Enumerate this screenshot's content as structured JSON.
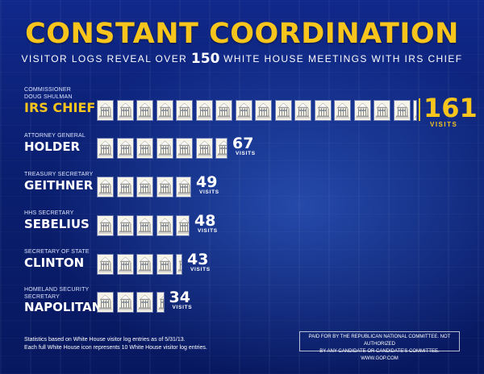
{
  "header": {
    "title": "CONSTANT COORDINATION",
    "subtitle_before": "VISITOR LOGS REVEAL OVER",
    "subtitle_number": "150",
    "subtitle_after": "WHITE HOUSE MEETINGS WITH IRS CHIEF"
  },
  "colors": {
    "accent": "#f7c51c",
    "background": "#0b1f6e",
    "icon_fill": "#f6f3e8"
  },
  "icon": "white-house-icon",
  "chart_data": {
    "type": "bar",
    "title": "CONSTANT COORDINATION",
    "subtitle": "VISITOR LOGS REVEAL OVER 150 WHITE HOUSE MEETINGS WITH IRS CHIEF",
    "unit_label": "VISITS",
    "icon_unit": 10,
    "categories": [
      "IRS CHIEF",
      "HOLDER",
      "GEITHNER",
      "SEBELIUS",
      "CLINTON",
      "NAPOLITANO"
    ],
    "roles": [
      [
        "COMMISSIONER",
        "DOUG SHULMAN"
      ],
      [
        "ATTORNEY GENERAL"
      ],
      [
        "TREASURY SECRETARY"
      ],
      [
        "HHS SECRETARY"
      ],
      [
        "SECRETARY OF STATE"
      ],
      [
        "HOMELAND SECURITY SECRETARY"
      ]
    ],
    "values": [
      161,
      67,
      49,
      48,
      43,
      34
    ]
  },
  "footer": {
    "note_line1": "Statistics based on White House visitor log entries as of 5/31/13.",
    "note_line2": "Each full White House icon represents 10 White House visitor log entries.",
    "disclaimer_line1": "PAID FOR BY THE REPUBLICAN NATIONAL COMMITTEE. NOT AUTHORIZED",
    "disclaimer_line2": "BY ANY CANDIDATE OR CANDIDATE'S COMMITTEE. WWW.GOP.COM"
  }
}
